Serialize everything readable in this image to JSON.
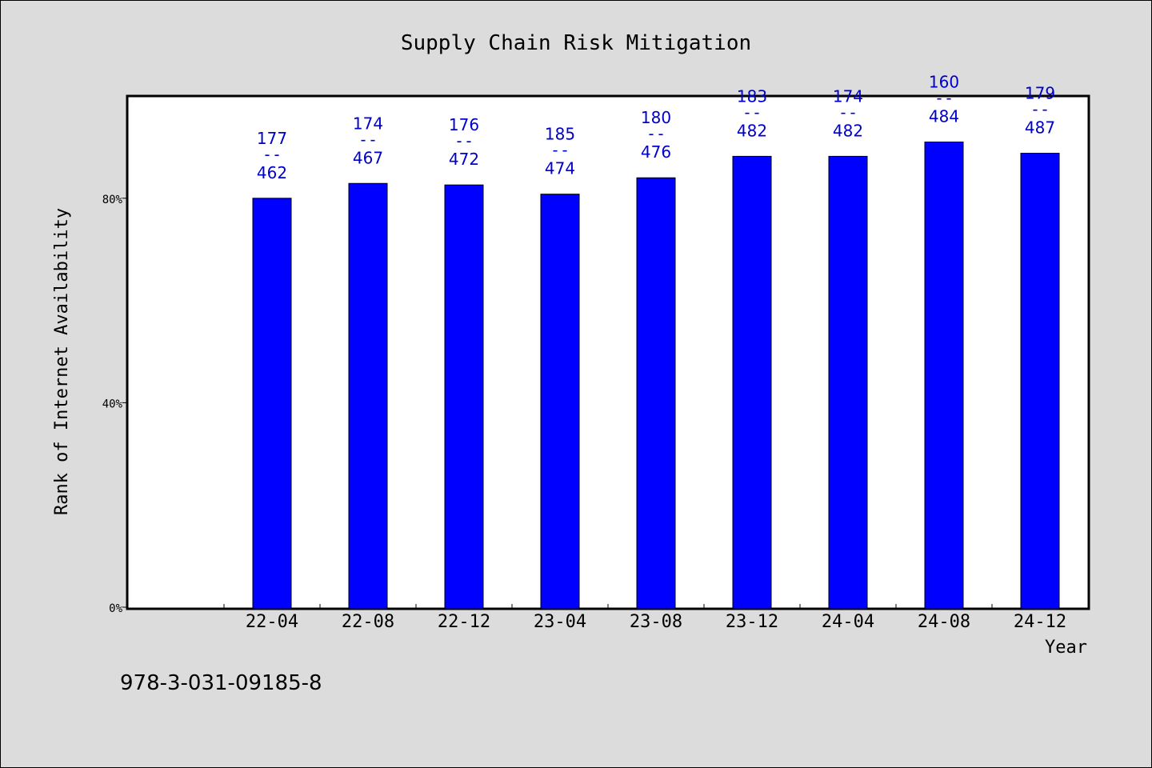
{
  "chart_data": {
    "type": "bar",
    "title": "Supply Chain Risk Mitigation",
    "xlabel": "Year",
    "ylabel": "Rank of Internet Availability",
    "categories": [
      "22-04",
      "22-08",
      "22-12",
      "23-04",
      "23-08",
      "23-12",
      "24-04",
      "24-08",
      "24-12"
    ],
    "values": [
      80.0,
      82.9,
      82.6,
      80.8,
      84.0,
      88.2,
      88.2,
      91.0,
      88.8
    ],
    "numerators": [
      "177",
      "174",
      "176",
      "185",
      "180",
      "183",
      "174",
      "160",
      "179"
    ],
    "denominators": [
      "462",
      "467",
      "472",
      "474",
      "476",
      "482",
      "482",
      "484",
      "487"
    ],
    "label_separator": "--",
    "yticks": [
      "0%",
      "40%",
      "80%"
    ],
    "ylim": [
      0,
      100
    ],
    "grid": false,
    "bar_color": "#0000ff",
    "label_color": "#0000cc"
  },
  "footer": {
    "isbn": "978-3-031-09185-8"
  }
}
